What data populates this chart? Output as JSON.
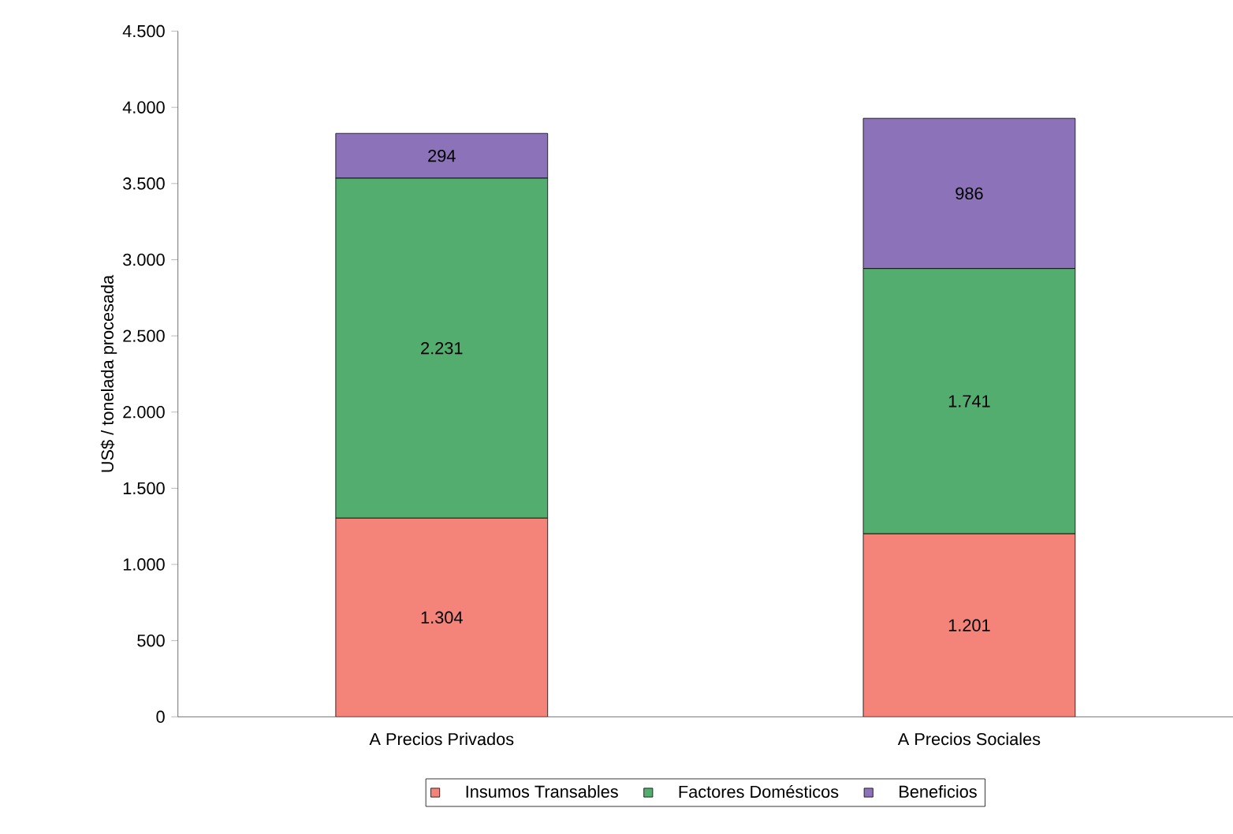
{
  "chart_data": {
    "type": "bar",
    "stacked": true,
    "ylabel": "US$ / tonelada procesada",
    "categories": [
      "A Precios Privados",
      "A Precios Sociales"
    ],
    "series": [
      {
        "name": "Insumos Transables",
        "color": "#f4837a",
        "values": [
          1304,
          1201
        ],
        "value_labels": [
          "1.304",
          "1.201"
        ]
      },
      {
        "name": "Factores Domésticos",
        "color": "#52ad6e",
        "values": [
          2231,
          1741
        ],
        "value_labels": [
          "2.231",
          "1.741"
        ]
      },
      {
        "name": "Beneficios",
        "color": "#8c72b8",
        "values": [
          294,
          986
        ],
        "value_labels": [
          "294",
          "986"
        ]
      }
    ],
    "ylim": [
      0,
      4500
    ],
    "yticks": [
      {
        "value": 0,
        "label": "0"
      },
      {
        "value": 500,
        "label": "500"
      },
      {
        "value": 1000,
        "label": "1.000"
      },
      {
        "value": 1500,
        "label": "1.500"
      },
      {
        "value": 2000,
        "label": "2.000"
      },
      {
        "value": 2500,
        "label": "2.500"
      },
      {
        "value": 3000,
        "label": "3.000"
      },
      {
        "value": 3500,
        "label": "3.500"
      },
      {
        "value": 4000,
        "label": "4.000"
      },
      {
        "value": 4500,
        "label": "4.500"
      }
    ],
    "grid": false,
    "legend": "bottom"
  }
}
